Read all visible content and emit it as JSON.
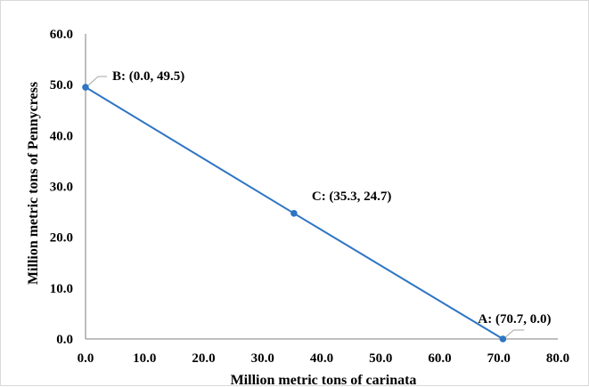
{
  "chart_data": {
    "type": "line",
    "title": "",
    "xlabel": "Million metric tons of carinata",
    "ylabel": "Million metric tons of Pennycress",
    "xlim": [
      0,
      80
    ],
    "ylim": [
      0,
      60
    ],
    "x_ticks": [
      "0.0",
      "10.0",
      "20.0",
      "30.0",
      "40.0",
      "50.0",
      "60.0",
      "70.0",
      "80.0"
    ],
    "y_ticks": [
      "0.0",
      "10.0",
      "20.0",
      "30.0",
      "40.0",
      "50.0",
      "60.0"
    ],
    "grid": false,
    "line_color": "#2e75c4",
    "points": [
      {
        "x": 0.0,
        "y": 49.5,
        "label": "B: (0.0, 49.5)"
      },
      {
        "x": 35.3,
        "y": 24.7,
        "label": "C: (35.3, 24.7)"
      },
      {
        "x": 70.7,
        "y": 0.0,
        "label": "A: (70.7, 0.0)"
      }
    ]
  }
}
